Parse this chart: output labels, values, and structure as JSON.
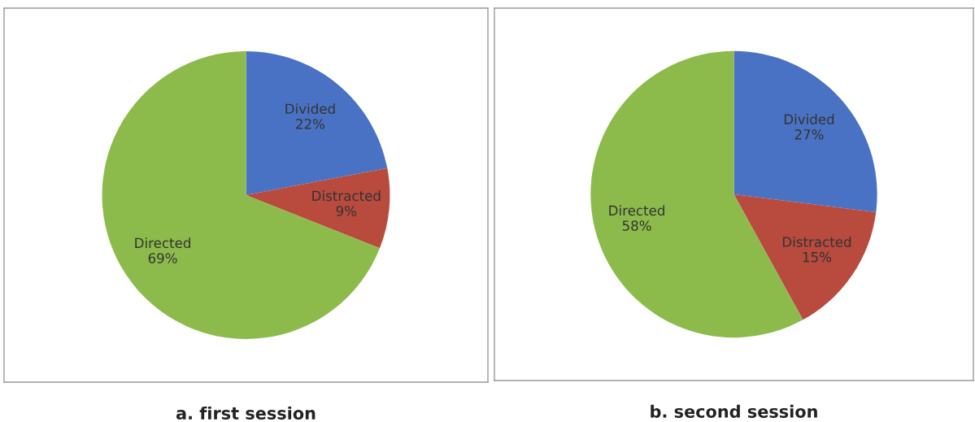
{
  "chart_data": [
    {
      "type": "pie",
      "title": "a. first session",
      "categories": [
        "Divided",
        "Distracted",
        "Directed"
      ],
      "values": [
        22,
        9,
        69
      ],
      "value_labels": [
        "22%",
        "9%",
        "69%"
      ],
      "colors": [
        "#4a72c4",
        "#b84a3e",
        "#8cbb4b"
      ]
    },
    {
      "type": "pie",
      "title": "b. second session",
      "categories": [
        "Divided",
        "Distracted",
        "Directed"
      ],
      "values": [
        27,
        15,
        58
      ],
      "value_labels": [
        "27%",
        "15%",
        "58%"
      ],
      "colors": [
        "#4a72c4",
        "#b84a3e",
        "#8cbb4b"
      ]
    }
  ]
}
